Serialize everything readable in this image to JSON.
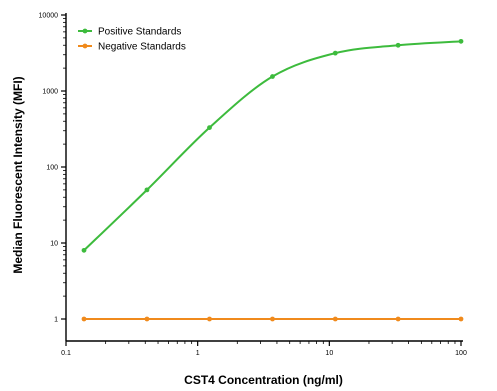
{
  "chart_data": {
    "type": "line",
    "title": "",
    "xlabel": "CST4 Concentration (ng/ml)",
    "ylabel": "Median Fluorescent Intensity (MFI)",
    "xscale": "log",
    "yscale": "log",
    "xlim": [
      0.1,
      100
    ],
    "ylim": [
      1,
      10000
    ],
    "xticks": [
      0.1,
      1,
      10,
      100
    ],
    "xtick_labels": [
      "0.1",
      "1",
      "10",
      "100"
    ],
    "yticks": [
      1,
      10,
      100,
      1000,
      10000
    ],
    "ytick_labels": [
      "1",
      "10",
      "100",
      "1000",
      "10000"
    ],
    "grid": false,
    "legend_position": "top-left",
    "series": [
      {
        "name": "Positive Standards",
        "color": "#3dbb3d",
        "marker": "circle",
        "curve": "smooth",
        "x": [
          0.137,
          0.412,
          1.23,
          3.7,
          11.1,
          33.3,
          100
        ],
        "y": [
          8,
          50,
          330,
          1550,
          3150,
          4000,
          4500
        ]
      },
      {
        "name": "Negative Standards",
        "color": "#f08a1c",
        "marker": "circle",
        "curve": "straight",
        "x": [
          0.137,
          0.412,
          1.23,
          3.7,
          11.1,
          33.3,
          100
        ],
        "y": [
          1,
          1,
          1,
          1,
          1,
          1,
          1
        ]
      }
    ]
  }
}
